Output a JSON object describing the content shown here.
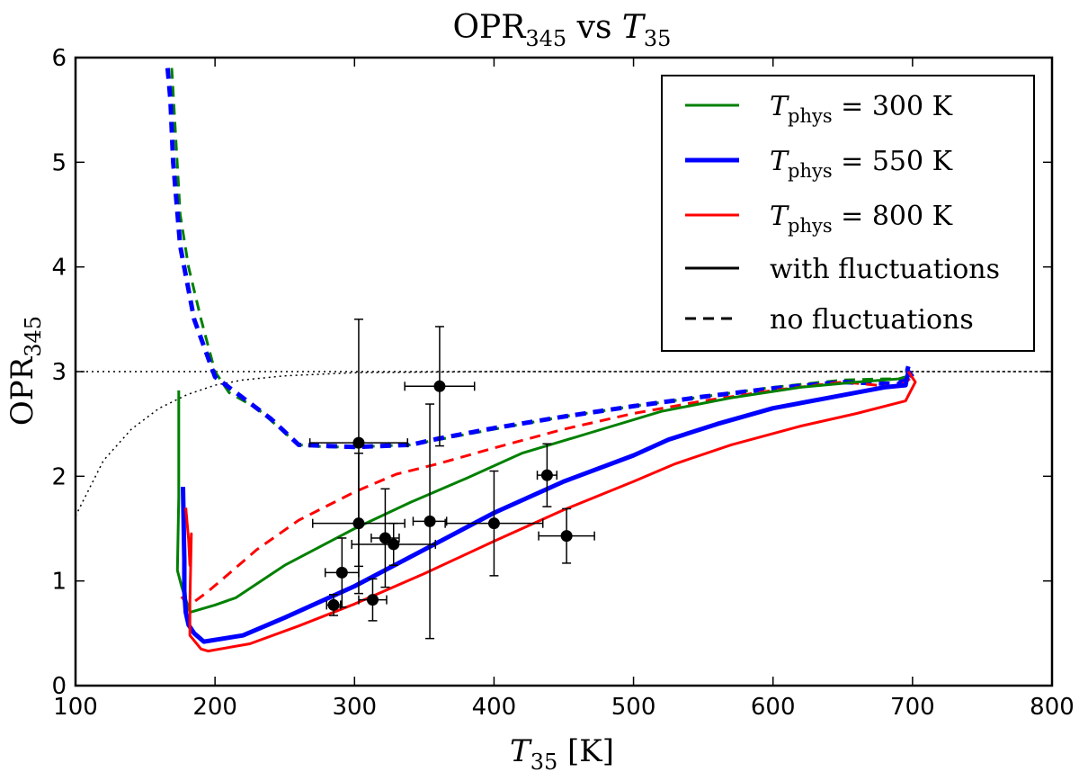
{
  "chart_data": {
    "type": "line",
    "title": "OPR₃₄₅ vs T₃₅",
    "xlabel": "T₃₅ [K]",
    "ylabel": "OPR₃₄₅",
    "xlim": [
      100,
      800
    ],
    "ylim": [
      0,
      6
    ],
    "xticks": [
      100,
      200,
      300,
      400,
      500,
      600,
      700,
      800
    ],
    "yticks": [
      0,
      1,
      2,
      3,
      4,
      5,
      6
    ],
    "legend_position": "top-right",
    "legend": [
      {
        "label": "T_phys = 300 K",
        "color": "#008000",
        "style": "solid",
        "width": 3
      },
      {
        "label": "T_phys = 550 K",
        "color": "#0000ff",
        "style": "solid",
        "width": 5
      },
      {
        "label": "T_phys = 800 K",
        "color": "#ff0000",
        "style": "solid",
        "width": 3
      },
      {
        "label": "with fluctuations",
        "color": "#000000",
        "style": "solid",
        "width": 3
      },
      {
        "label": "no fluctuations",
        "color": "#000000",
        "style": "dashed",
        "width": 3
      }
    ],
    "reference_line": {
      "name": "high-temperature limit",
      "y": 3,
      "style": "dotted",
      "color": "#000000"
    },
    "equilibrium_curve": {
      "style": "dotted",
      "color": "#000000",
      "x": [
        100,
        120,
        140,
        160,
        180,
        200,
        220,
        250,
        300,
        400,
        500,
        600,
        700,
        800
      ],
      "y": [
        1.62,
        2.15,
        2.45,
        2.65,
        2.78,
        2.87,
        2.92,
        2.96,
        2.99,
        3.0,
        3.0,
        3.0,
        3.0,
        3.0
      ]
    },
    "series": [
      {
        "name": "T_phys=300K no fluctuations",
        "color": "#008000",
        "style": "dashed",
        "width": 3,
        "x": [
          169,
          175,
          181,
          190,
          200,
          210,
          230,
          260,
          280,
          300,
          340,
          360,
          400,
          450,
          500,
          550,
          600,
          650,
          680,
          695
        ],
        "y": [
          5.9,
          4.5,
          4.0,
          3.5,
          3.0,
          2.8,
          2.65,
          2.3,
          2.28,
          2.28,
          2.3,
          2.35,
          2.45,
          2.57,
          2.67,
          2.76,
          2.85,
          2.92,
          2.93,
          2.93
        ]
      },
      {
        "name": "T_phys=550K no fluctuations",
        "color": "#0000ff",
        "style": "dashed",
        "width": 5,
        "x": [
          166,
          168,
          170,
          175,
          185,
          200,
          215,
          240,
          260,
          300,
          340,
          360,
          400,
          450,
          500,
          550,
          600,
          650,
          690,
          695,
          697
        ],
        "y": [
          5.9,
          5.6,
          5.0,
          4.2,
          3.5,
          2.95,
          2.8,
          2.55,
          2.3,
          2.28,
          2.3,
          2.36,
          2.46,
          2.57,
          2.67,
          2.76,
          2.84,
          2.9,
          2.88,
          2.95,
          3.05
        ]
      },
      {
        "name": "T_phys=800K no fluctuations",
        "color": "#ff0000",
        "style": "dashed",
        "width": 3,
        "x": [
          176,
          180,
          185,
          195,
          210,
          230,
          260,
          300,
          330,
          360,
          400,
          450,
          500,
          550,
          600,
          650,
          690,
          700
        ],
        "y": [
          0.85,
          0.78,
          0.8,
          0.9,
          1.07,
          1.3,
          1.58,
          1.85,
          2.02,
          2.12,
          2.27,
          2.45,
          2.6,
          2.72,
          2.82,
          2.9,
          2.85,
          2.95
        ]
      },
      {
        "name": "T_phys=300K with fluctuations",
        "color": "#008000",
        "style": "solid",
        "width": 3,
        "x": [
          174,
          174,
          173,
          176,
          182,
          200,
          215,
          250,
          300,
          340,
          380,
          420,
          470,
          520,
          570,
          620,
          660,
          690,
          695
        ],
        "y": [
          2.82,
          1.8,
          1.1,
          0.95,
          0.7,
          0.77,
          0.84,
          1.15,
          1.5,
          1.75,
          1.98,
          2.22,
          2.42,
          2.62,
          2.75,
          2.85,
          2.9,
          2.93,
          2.95
        ]
      },
      {
        "name": "T_phys=550K with fluctuations",
        "color": "#0000ff",
        "style": "solid",
        "width": 5,
        "x": [
          177,
          178,
          178,
          179,
          181,
          185,
          192,
          220,
          250,
          300,
          350,
          400,
          450,
          500,
          525,
          560,
          600,
          640,
          680,
          695,
          697,
          700
        ],
        "y": [
          1.9,
          1.2,
          0.9,
          0.7,
          0.58,
          0.5,
          0.42,
          0.48,
          0.65,
          0.95,
          1.3,
          1.65,
          1.95,
          2.2,
          2.35,
          2.5,
          2.65,
          2.75,
          2.85,
          2.87,
          3.0,
          2.95
        ]
      },
      {
        "name": "T_phys=800K with fluctuations",
        "color": "#ff0000",
        "style": "solid",
        "width": 3,
        "x": [
          179,
          181,
          182,
          183,
          182,
          182,
          190,
          195,
          225,
          260,
          300,
          350,
          400,
          450,
          500,
          530,
          570,
          620,
          660,
          695,
          702,
          697
        ],
        "y": [
          1.7,
          1.4,
          1.15,
          1.45,
          0.8,
          0.48,
          0.35,
          0.33,
          0.4,
          0.57,
          0.78,
          1.07,
          1.38,
          1.68,
          1.95,
          2.12,
          2.3,
          2.48,
          2.6,
          2.72,
          2.9,
          3.0
        ]
      }
    ],
    "observations": {
      "marker": "filled circle",
      "color": "#000000",
      "points": [
        {
          "x": 285,
          "y": 0.77,
          "xerr": 5,
          "yerr": 0.1
        },
        {
          "x": 313,
          "y": 0.82,
          "xerr": 10,
          "yerr": 0.2
        },
        {
          "x": 291,
          "y": 1.08,
          "xerr": 12,
          "yerr": 0.33
        },
        {
          "x": 303,
          "y": 1.55,
          "xerr": 33,
          "yerr": 0.67
        },
        {
          "x": 303,
          "y": 2.32,
          "xerr": 35,
          "yerr": 1.18
        },
        {
          "x": 322,
          "y": 1.41,
          "xerr": 10,
          "yerr": 0.47
        },
        {
          "x": 328,
          "y": 1.35,
          "xerr": 30,
          "yerr": 0.2
        },
        {
          "x": 354,
          "y": 1.57,
          "xerr": 12,
          "yerr": 1.12
        },
        {
          "x": 361,
          "y": 2.86,
          "xerr": 25,
          "yerr": 0.57
        },
        {
          "x": 400,
          "y": 1.55,
          "xerr": 35,
          "yerr": 0.5
        },
        {
          "x": 438,
          "y": 2.01,
          "xerr": 7,
          "yerr": 0.3
        },
        {
          "x": 452,
          "y": 1.43,
          "xerr": 20,
          "yerr": 0.26
        }
      ]
    }
  }
}
